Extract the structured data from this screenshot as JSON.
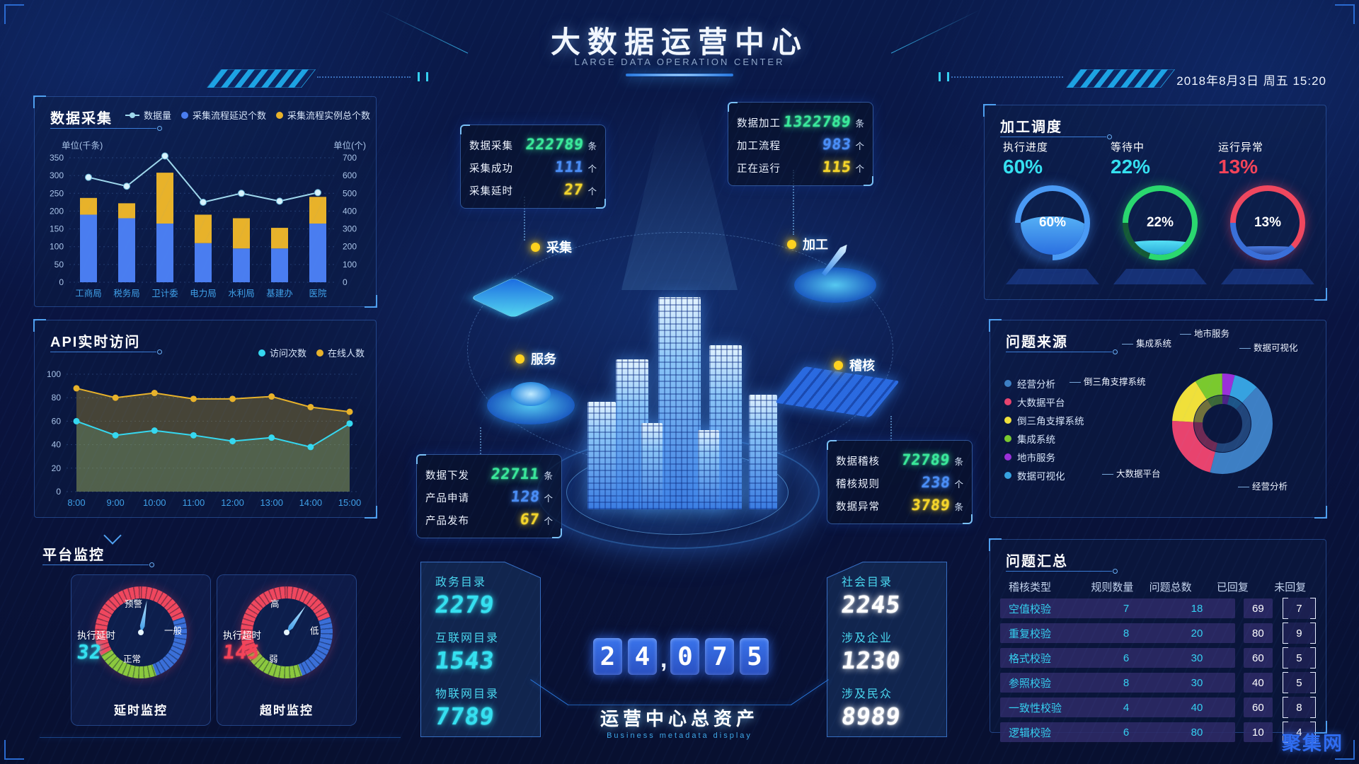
{
  "header": {
    "title": "大数据运营中心",
    "subtitle": "LARGE DATA OPERATION CENTER",
    "datetime": "2018年8月3日 周五 15:20"
  },
  "watermark": "聚集网",
  "left": {
    "collect": {
      "title": "数据采集",
      "unit_left": "单位(千条)",
      "unit_right": "单位(个)"
    },
    "api": {
      "title": "API实时访问"
    },
    "platform": {
      "title": "平台监控",
      "gauges": [
        {
          "label": "执行延时",
          "value": "32",
          "caption": "延时监控",
          "zones": [
            "预警",
            "一般",
            "正常"
          ],
          "value_color": "#35e0f0",
          "needle": 10
        },
        {
          "label": "执行超时",
          "value": "145",
          "caption": "超时监控",
          "zones": [
            "高",
            "低",
            "弱"
          ],
          "value_color": "#f54358",
          "needle": 35
        }
      ]
    }
  },
  "center": {
    "nodes": [
      {
        "label": "采集"
      },
      {
        "label": "加工"
      },
      {
        "label": "服务"
      },
      {
        "label": "稽核"
      }
    ],
    "stat_boxes": [
      {
        "rows": [
          {
            "label": "数据采集",
            "value": "222789",
            "unit": "条",
            "color": "#3ae89a"
          },
          {
            "label": "采集成功",
            "value": "111",
            "unit": "个",
            "color": "#4a8df5"
          },
          {
            "label": "采集延时",
            "value": "27",
            "unit": "个",
            "color": "#f5d52a"
          }
        ]
      },
      {
        "rows": [
          {
            "label": "数据加工",
            "value": "1322789",
            "unit": "条",
            "color": "#3ae89a"
          },
          {
            "label": "加工流程",
            "value": "983",
            "unit": "个",
            "color": "#4a8df5"
          },
          {
            "label": "正在运行",
            "value": "115",
            "unit": "个",
            "color": "#f5d52a"
          }
        ]
      },
      {
        "rows": [
          {
            "label": "数据下发",
            "value": "22711",
            "unit": "条",
            "color": "#3ae89a"
          },
          {
            "label": "产品申请",
            "value": "128",
            "unit": "个",
            "color": "#4a8df5"
          },
          {
            "label": "产品发布",
            "value": "67",
            "unit": "个",
            "color": "#f5d52a"
          }
        ]
      },
      {
        "rows": [
          {
            "label": "数据稽核",
            "value": "72789",
            "unit": "条",
            "color": "#3ae89a"
          },
          {
            "label": "稽核规则",
            "value": "238",
            "unit": "个",
            "color": "#4a8df5"
          },
          {
            "label": "数据异常",
            "value": "3789",
            "unit": "条",
            "color": "#f5d52a"
          }
        ]
      }
    ],
    "catalog_left": {
      "items": [
        {
          "label": "政务目录",
          "value": "2279"
        },
        {
          "label": "互联网目录",
          "value": "1543"
        },
        {
          "label": "物联网目录",
          "value": "7789"
        }
      ],
      "num_color": "#35e0f0"
    },
    "catalog_right": {
      "items": [
        {
          "label": "社会目录",
          "value": "2245"
        },
        {
          "label": "涉及企业",
          "value": "1230"
        },
        {
          "label": "涉及民众",
          "value": "8989"
        }
      ],
      "num_color": "#ffffff"
    },
    "total": {
      "digits": [
        "2",
        "4",
        ",",
        "0",
        "7",
        "5"
      ],
      "label": "运营中心总资产",
      "sublabel": "Business metadata display"
    }
  },
  "right": {
    "sched": {
      "title": "加工调度",
      "gauges": [
        {
          "label": "执行进度",
          "percent": "60%",
          "pct_color": "#35e0f0",
          "ring": "blue",
          "fill": 60,
          "fill_color": "linear-gradient(180deg,#55b0f5,#2a6fe0)"
        },
        {
          "label": "等待中",
          "percent": "22%",
          "pct_color": "#35e0f0",
          "ring": "green",
          "fill": 22,
          "fill_color": "linear-gradient(180deg,#55e0f5,#2aa8d8)"
        },
        {
          "label": "运行异常",
          "percent": "13%",
          "pct_color": "#f54358",
          "ring": "red",
          "fill": 13,
          "fill_color": "linear-gradient(180deg,#4a7ae0,#2a4a9a)"
        }
      ]
    },
    "source": {
      "title": "问题来源"
    },
    "summary": {
      "title": "问题汇总",
      "columns": [
        "稽核类型",
        "规则数量",
        "问题总数",
        "已回复",
        "未回复"
      ],
      "rows": [
        [
          "空值校验",
          "7",
          "18",
          "69",
          "7"
        ],
        [
          "重复校验",
          "8",
          "20",
          "80",
          "9"
        ],
        [
          "格式校验",
          "6",
          "30",
          "60",
          "5"
        ],
        [
          "参照校验",
          "8",
          "30",
          "40",
          "5"
        ],
        [
          "一致性校验",
          "4",
          "40",
          "60",
          "8"
        ],
        [
          "逻辑校验",
          "6",
          "80",
          "10",
          "4"
        ]
      ]
    }
  },
  "chart_data": [
    {
      "id": "collect",
      "type": "bar",
      "title": "数据采集",
      "categories": [
        "工商局",
        "税务局",
        "卫计委",
        "电力局",
        "水利局",
        "基建办",
        "医院"
      ],
      "series": [
        {
          "name": "采集流程延迟个数",
          "type": "bar",
          "color": "#4a7df0",
          "values": [
            190,
            180,
            165,
            110,
            95,
            95,
            165
          ]
        },
        {
          "name": "采集流程实例总个数",
          "type": "bar",
          "color": "#e8b22a",
          "values": [
            47,
            42,
            143,
            80,
            85,
            58,
            75
          ]
        },
        {
          "name": "数据量",
          "type": "line",
          "color": "#9fd8ec",
          "values": [
            295,
            270,
            355,
            225,
            250,
            228,
            252
          ]
        }
      ],
      "legend": [
        "数据量",
        "采集流程延迟个数",
        "采集流程实例总个数"
      ],
      "ylabel_left": "单位(千条)",
      "ylim_left": [
        0,
        350
      ],
      "ytick_left": 50,
      "ylabel_right": "单位(个)",
      "ylim_right": [
        0,
        700
      ],
      "ytick_right": 100,
      "grid": true,
      "legend_position": "top"
    },
    {
      "id": "api",
      "type": "area",
      "title": "API实时访问",
      "x": [
        "8:00",
        "9:00",
        "10:00",
        "11:00",
        "12:00",
        "13:00",
        "14:00",
        "15:00"
      ],
      "series": [
        {
          "name": "访问次数",
          "color": "#35d8f0",
          "fill": "rgba(110,165,125,.30)",
          "values": [
            60,
            48,
            52,
            48,
            43,
            46,
            38,
            58
          ]
        },
        {
          "name": "在线人数",
          "color": "#e8b22a",
          "fill": "rgba(200,165,40,.32)",
          "values": [
            88,
            80,
            84,
            79,
            79,
            81,
            72,
            68
          ]
        }
      ],
      "legend": [
        "访问次数",
        "在线人数"
      ],
      "ylim": [
        0,
        100
      ],
      "ytick": 20,
      "grid": true,
      "legend_position": "top-right"
    },
    {
      "id": "source",
      "type": "pie",
      "title": "问题来源",
      "labels": [
        "经营分析",
        "大数据平台",
        "倒三角支撑系统",
        "集成系统",
        "地市服务",
        "数据可视化"
      ],
      "values": [
        42,
        22,
        15,
        9,
        4,
        8
      ],
      "colors": [
        "#3d7fc4",
        "#e8436e",
        "#f0e03a",
        "#7ac92e",
        "#9b30d9",
        "#36a2e0"
      ],
      "draw_order": [
        4,
        5,
        0,
        1,
        2,
        3
      ],
      "legend_position": "left"
    }
  ]
}
